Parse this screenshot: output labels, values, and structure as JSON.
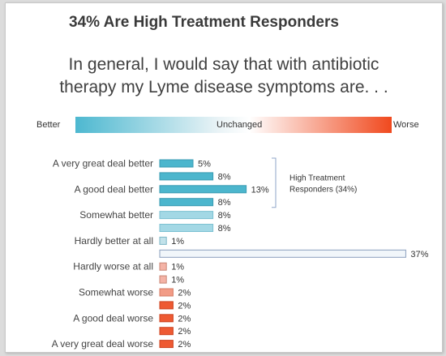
{
  "title": "34% Are High Treatment Responders",
  "question_line1": "In general, I would say that with antibiotic",
  "question_line2": "therapy my Lyme disease symptoms are. . .",
  "scale": {
    "left": "Better",
    "middle": "Unchanged",
    "right": "Worse",
    "colors": [
      "#4db8d0",
      "#e9f3f6",
      "#f0491e"
    ]
  },
  "annotation": {
    "line1": "High Treatment",
    "line2": "Responders (34%)"
  },
  "chart_data": {
    "type": "bar",
    "orientation": "horizontal",
    "unit": "%",
    "bars": [
      {
        "value": 5,
        "label": "5%",
        "color": "#4cb6cd",
        "stroke": "#3a9bb2"
      },
      {
        "value": 8,
        "label": "8%",
        "color": "#4cb6cd",
        "stroke": "#3a9bb2"
      },
      {
        "value": 13,
        "label": "13%",
        "color": "#4cb6cd",
        "stroke": "#3a9bb2"
      },
      {
        "value": 8,
        "label": "8%",
        "color": "#4cb6cd",
        "stroke": "#3a9bb2"
      },
      {
        "value": 8,
        "label": "8%",
        "color": "#a3d8e5",
        "stroke": "#7cc1d2"
      },
      {
        "value": 8,
        "label": "8%",
        "color": "#a3d8e5",
        "stroke": "#7cc1d2"
      },
      {
        "value": 1,
        "label": "1%",
        "color": "#c2e2ea",
        "stroke": "#7cb6c6"
      },
      {
        "value": 37,
        "label": "37%",
        "color": "#f1f6fa",
        "stroke": "#8a9fbd"
      },
      {
        "value": 1,
        "label": "1%",
        "color": "#f4b3a6",
        "stroke": "#c98676"
      },
      {
        "value": 1,
        "label": "1%",
        "color": "#f4b3a6",
        "stroke": "#c98676"
      },
      {
        "value": 2,
        "label": "2%",
        "color": "#f29c86",
        "stroke": "#d67c66"
      },
      {
        "value": 2,
        "label": "2%",
        "color": "#ee5a33",
        "stroke": "#cc4422"
      },
      {
        "value": 2,
        "label": "2%",
        "color": "#ee5a33",
        "stroke": "#cc4422"
      },
      {
        "value": 2,
        "label": "2%",
        "color": "#ee5a33",
        "stroke": "#cc4422"
      },
      {
        "value": 2,
        "label": "2%",
        "color": "#ee5a33",
        "stroke": "#cc4422"
      }
    ],
    "category_labels": [
      {
        "text": "A very great deal better",
        "bar_index": 0
      },
      {
        "text": "A good deal better",
        "bar_index": 2
      },
      {
        "text": "Somewhat better",
        "bar_index": 4
      },
      {
        "text": "Hardly better at all",
        "bar_index": 6
      },
      {
        "text": "Hardly worse at all",
        "bar_index": 8
      },
      {
        "text": "Somewhat worse",
        "bar_index": 10
      },
      {
        "text": "A good deal worse",
        "bar_index": 12
      },
      {
        "text": "A very great deal worse",
        "bar_index": 14
      }
    ],
    "bracket_bar_indices": [
      0,
      3
    ]
  }
}
